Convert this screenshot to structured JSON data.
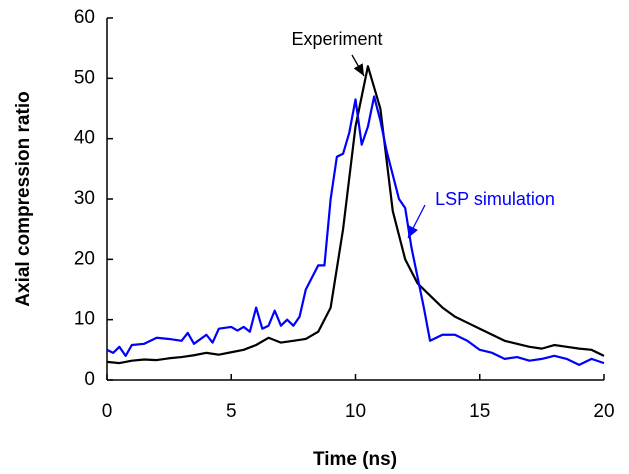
{
  "chart_data": {
    "type": "line",
    "xlabel": "Time (ns)",
    "ylabel": "Axial compression ratio",
    "xlim": [
      0,
      20
    ],
    "ylim": [
      0,
      60
    ],
    "xticks": [
      0,
      5,
      10,
      15,
      20
    ],
    "yticks": [
      0,
      10,
      20,
      30,
      40,
      50,
      60
    ],
    "series": [
      {
        "name": "Experiment",
        "color": "#000000",
        "x": [
          0,
          0.5,
          1,
          1.5,
          2,
          2.5,
          3,
          3.5,
          4,
          4.5,
          5,
          5.5,
          6,
          6.5,
          7,
          7.5,
          8,
          8.5,
          9,
          9.5,
          10,
          10.5,
          11,
          11.5,
          12,
          12.5,
          13,
          13.5,
          14,
          14.5,
          15,
          15.5,
          16,
          16.5,
          17,
          17.5,
          18,
          18.5,
          19,
          19.5,
          20
        ],
        "values": [
          3,
          2.8,
          3.2,
          3.4,
          3.3,
          3.6,
          3.8,
          4.1,
          4.5,
          4.2,
          4.6,
          5,
          5.8,
          7,
          6.2,
          6.5,
          6.8,
          8,
          12,
          25,
          42,
          52,
          45,
          28,
          20,
          16,
          14,
          12,
          10.5,
          9.5,
          8.5,
          7.5,
          6.5,
          6,
          5.5,
          5.2,
          5.8,
          5.5,
          5.2,
          5,
          4
        ]
      },
      {
        "name": "LSP simulation",
        "color": "#0000ff",
        "x": [
          0,
          0.25,
          0.5,
          0.75,
          1,
          1.5,
          2,
          2.5,
          3,
          3.25,
          3.5,
          4,
          4.25,
          4.5,
          5,
          5.25,
          5.5,
          5.75,
          6,
          6.25,
          6.5,
          6.75,
          7,
          7.25,
          7.5,
          7.75,
          8,
          8.5,
          8.75,
          9,
          9.25,
          9.5,
          9.75,
          10,
          10.25,
          10.5,
          10.75,
          11,
          11.25,
          11.5,
          11.75,
          12,
          12.25,
          12.5,
          12.75,
          13,
          13.5,
          14,
          14.5,
          15,
          15.5,
          16,
          16.5,
          17,
          17.5,
          18,
          18.5,
          19,
          19.5,
          20
        ],
        "values": [
          5,
          4.5,
          5.5,
          4,
          5.8,
          6,
          7,
          6.8,
          6.5,
          7.8,
          6,
          7.5,
          6.2,
          8.5,
          8.8,
          8.2,
          8.8,
          8,
          12,
          8.5,
          9,
          11.5,
          9,
          10,
          9,
          10.5,
          15,
          19,
          19,
          30,
          37,
          37.5,
          41,
          46.5,
          39,
          42,
          47,
          43,
          38,
          34,
          30,
          28.5,
          22,
          17,
          12,
          6.5,
          7.5,
          7.5,
          6.5,
          5,
          4.5,
          3.5,
          3.8,
          3.2,
          3.5,
          4,
          3.5,
          2.5,
          3.5,
          2.8
        ]
      }
    ]
  }
}
